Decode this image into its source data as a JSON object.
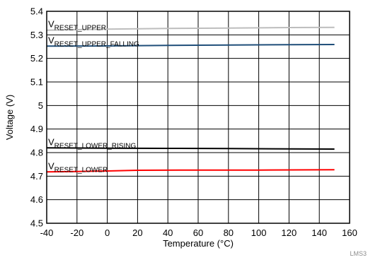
{
  "chart_data": {
    "type": "line",
    "xlabel": "Temperature (°C)",
    "ylabel": "Voltage (V)",
    "xlim": [
      -40,
      160
    ],
    "ylim": [
      4.5,
      5.4
    ],
    "xticks": [
      -40,
      -20,
      0,
      20,
      40,
      60,
      80,
      100,
      120,
      140,
      160
    ],
    "yticks": [
      4.5,
      4.6,
      4.7,
      4.8,
      4.9,
      5,
      5.1,
      5.2,
      5.3,
      5.4
    ],
    "grid": true,
    "series": [
      {
        "name": "V",
        "sub": "RESET_UPPER",
        "color": "#bdbdbd",
        "x": [
          -40,
          0,
          40,
          80,
          120,
          150
        ],
        "y": [
          5.32,
          5.324,
          5.327,
          5.329,
          5.331,
          5.332
        ]
      },
      {
        "name": "V",
        "sub": "RESET_UPPER_FALLING",
        "color": "#1f4e79",
        "x": [
          -40,
          0,
          40,
          80,
          120,
          150
        ],
        "y": [
          5.252,
          5.253,
          5.255,
          5.257,
          5.258,
          5.259
        ]
      },
      {
        "name": "V",
        "sub": "RESET_LOWER_RISING",
        "color": "#000000",
        "x": [
          -40,
          0,
          40,
          80,
          120,
          150
        ],
        "y": [
          4.82,
          4.819,
          4.818,
          4.817,
          4.816,
          4.815
        ]
      },
      {
        "name": "V",
        "sub": "RESET_LOWER",
        "color": "#ff0000",
        "x": [
          -40,
          -20,
          0,
          20,
          60,
          100,
          150
        ],
        "y": [
          4.718,
          4.72,
          4.722,
          4.725,
          4.726,
          4.726,
          4.727
        ]
      }
    ]
  },
  "watermark": "LMS3"
}
